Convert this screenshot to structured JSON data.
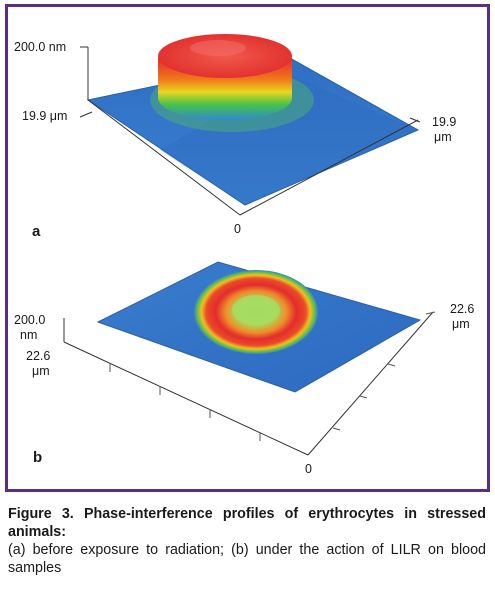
{
  "panel_a": {
    "letter": "a",
    "z_top_label": "200.0 nm",
    "y_label": "19.9 μm",
    "x_label_line1": "19.9",
    "x_label_line2": "μm",
    "origin_label": "0"
  },
  "panel_b": {
    "letter": "b",
    "z_top_label_line1": "200.0",
    "z_top_label_line2": "nm",
    "y_label_line1": "22.6",
    "y_label_line2": "μm",
    "x_label_line1": "22.6",
    "x_label_line2": "μm",
    "origin_label": "0"
  },
  "caption": {
    "title": "Figure 3. Phase-interference profiles of erythrocytes in stressed animals:",
    "description": "(a) before exposure to radiation; (b) under the action of LILR on blood samples"
  },
  "colors": {
    "frame": "#5b2d86",
    "surface_base": "#3a78c8",
    "surface_peak": "#e8282b"
  }
}
